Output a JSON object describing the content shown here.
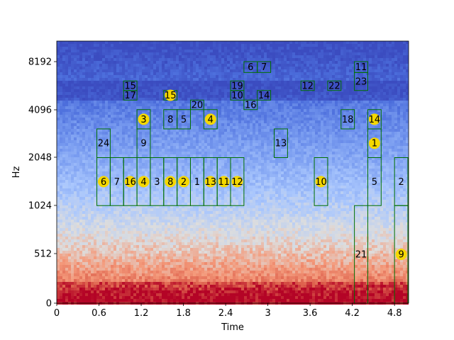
{
  "chart_data": {
    "type": "heatmap",
    "title": "",
    "xlabel": "Time",
    "ylabel": "Hz",
    "xlim": [
      0,
      5.0
    ],
    "y_scale": "log2 (0 at bottom)",
    "x_ticks": [
      "0",
      "0.6",
      "1.2",
      "1.8",
      "2.4",
      "3",
      "3.6",
      "4.2",
      "4.8"
    ],
    "x_tick_values": [
      0,
      0.6,
      1.2,
      1.8,
      2.4,
      3.0,
      3.6,
      4.2,
      4.8
    ],
    "y_ticks": [
      "0",
      "512",
      "1024",
      "2048",
      "4096",
      "8192"
    ],
    "y_tick_values": [
      0,
      512,
      1024,
      2048,
      4096,
      8192
    ],
    "colormap": {
      "name": "coolwarm",
      "low": "#3b4cc0",
      "mid": "#dddddd",
      "high": "#b40426"
    },
    "box_color": "#007000",
    "label_color": "#f5d800",
    "segments": [
      {
        "label": "6",
        "t0": 0.57,
        "t1": 0.76,
        "f0": 1024,
        "f1": 2048,
        "marker": true
      },
      {
        "label": "7",
        "t0": 0.76,
        "t1": 0.95,
        "f0": 1024,
        "f1": 2048,
        "marker": false
      },
      {
        "label": "16",
        "t0": 0.95,
        "t1": 1.14,
        "f0": 1024,
        "f1": 2048,
        "marker": true
      },
      {
        "label": "4",
        "t0": 1.14,
        "t1": 1.33,
        "f0": 1024,
        "f1": 2048,
        "marker": true
      },
      {
        "label": "3",
        "t0": 1.33,
        "t1": 1.52,
        "f0": 1024,
        "f1": 2048,
        "marker": false
      },
      {
        "label": "8",
        "t0": 1.52,
        "t1": 1.71,
        "f0": 1024,
        "f1": 2048,
        "marker": true
      },
      {
        "label": "2",
        "t0": 1.71,
        "t1": 1.9,
        "f0": 1024,
        "f1": 2048,
        "marker": true
      },
      {
        "label": "1",
        "t0": 1.9,
        "t1": 2.09,
        "f0": 1024,
        "f1": 2048,
        "marker": false
      },
      {
        "label": "13",
        "t0": 2.09,
        "t1": 2.28,
        "f0": 1024,
        "f1": 2048,
        "marker": true
      },
      {
        "label": "11",
        "t0": 2.28,
        "t1": 2.47,
        "f0": 1024,
        "f1": 2048,
        "marker": true
      },
      {
        "label": "12",
        "t0": 2.47,
        "t1": 2.66,
        "f0": 1024,
        "f1": 2048,
        "marker": true
      },
      {
        "label": "24",
        "t0": 0.57,
        "t1": 0.76,
        "f0": 2048,
        "f1": 3100,
        "marker": false
      },
      {
        "label": "9",
        "t0": 1.14,
        "t1": 1.33,
        "f0": 2048,
        "f1": 3100,
        "marker": false
      },
      {
        "label": "3",
        "t0": 1.14,
        "t1": 1.33,
        "f0": 3100,
        "f1": 4096,
        "marker": true
      },
      {
        "label": "8",
        "t0": 1.52,
        "t1": 1.71,
        "f0": 3100,
        "f1": 4096,
        "marker": false
      },
      {
        "label": "5",
        "t0": 1.71,
        "t1": 1.9,
        "f0": 3100,
        "f1": 4096,
        "marker": false
      },
      {
        "label": "4",
        "t0": 2.09,
        "t1": 2.28,
        "f0": 3100,
        "f1": 4096,
        "marker": true
      },
      {
        "label": "20",
        "t0": 1.9,
        "t1": 2.09,
        "f0": 4096,
        "f1": 4700,
        "marker": false
      },
      {
        "label": "15",
        "t0": 0.95,
        "t1": 1.14,
        "f0": 5400,
        "f1": 6200,
        "marker": false
      },
      {
        "label": "17",
        "t0": 0.95,
        "t1": 1.14,
        "f0": 4700,
        "f1": 5400,
        "marker": false
      },
      {
        "label": "15",
        "t0": 1.52,
        "t1": 1.71,
        "f0": 4700,
        "f1": 5400,
        "marker": true
      },
      {
        "label": "19",
        "t0": 2.47,
        "t1": 2.66,
        "f0": 5400,
        "f1": 6200,
        "marker": false
      },
      {
        "label": "10",
        "t0": 2.47,
        "t1": 2.66,
        "f0": 4700,
        "f1": 5400,
        "marker": false
      },
      {
        "label": "16",
        "t0": 2.66,
        "t1": 2.85,
        "f0": 4096,
        "f1": 4700,
        "marker": false
      },
      {
        "label": "6",
        "t0": 2.66,
        "t1": 2.85,
        "f0": 7000,
        "f1": 8192,
        "marker": false
      },
      {
        "label": "7",
        "t0": 2.85,
        "t1": 3.04,
        "f0": 7000,
        "f1": 8192,
        "marker": false
      },
      {
        "label": "14",
        "t0": 2.85,
        "t1": 3.04,
        "f0": 4700,
        "f1": 5400,
        "marker": false
      },
      {
        "label": "13",
        "t0": 3.09,
        "t1": 3.28,
        "f0": 2048,
        "f1": 3100,
        "marker": false
      },
      {
        "label": "12",
        "t0": 3.47,
        "t1": 3.66,
        "f0": 5400,
        "f1": 6200,
        "marker": false
      },
      {
        "label": "10",
        "t0": 3.66,
        "t1": 3.85,
        "f0": 1024,
        "f1": 2048,
        "marker": true
      },
      {
        "label": "22",
        "t0": 3.85,
        "t1": 4.04,
        "f0": 5400,
        "f1": 6200,
        "marker": false
      },
      {
        "label": "18",
        "t0": 4.04,
        "t1": 4.23,
        "f0": 3100,
        "f1": 4096,
        "marker": false
      },
      {
        "label": "11",
        "t0": 4.23,
        "t1": 4.42,
        "f0": 7000,
        "f1": 8192,
        "marker": false
      },
      {
        "label": "23",
        "t0": 4.23,
        "t1": 4.42,
        "f0": 5400,
        "f1": 7000,
        "marker": false
      },
      {
        "label": "21",
        "t0": 4.23,
        "t1": 4.42,
        "f0": 0,
        "f1": 1024,
        "marker": false
      },
      {
        "label": "14",
        "t0": 4.42,
        "t1": 4.61,
        "f0": 3100,
        "f1": 4096,
        "marker": true
      },
      {
        "label": "1",
        "t0": 4.42,
        "t1": 4.61,
        "f0": 2048,
        "f1": 3100,
        "marker": true
      },
      {
        "label": "5",
        "t0": 4.42,
        "t1": 4.61,
        "f0": 1024,
        "f1": 2048,
        "marker": false
      },
      {
        "label": "2",
        "t0": 4.8,
        "t1": 4.99,
        "f0": 1024,
        "f1": 2048,
        "marker": false
      },
      {
        "label": "9",
        "t0": 4.8,
        "t1": 4.99,
        "f0": 0,
        "f1": 1024,
        "marker": true
      }
    ]
  }
}
